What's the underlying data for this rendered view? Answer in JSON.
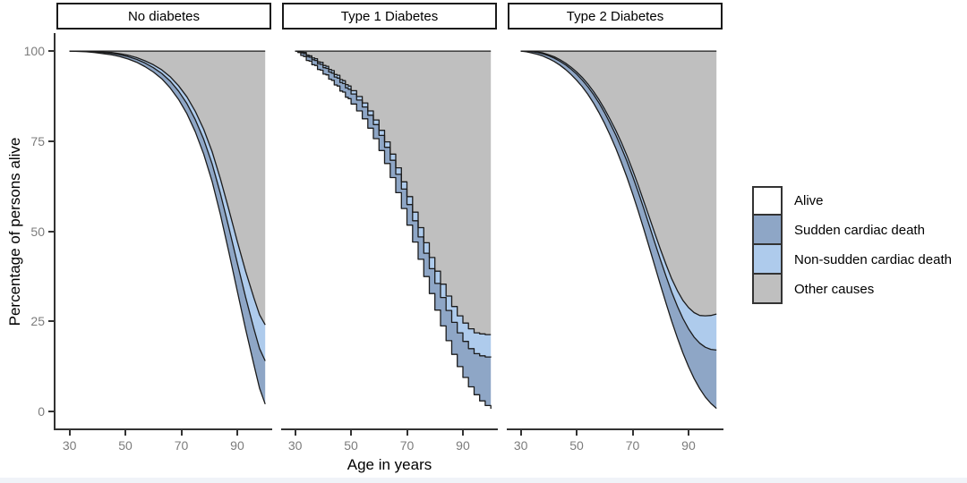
{
  "axes": {
    "x": {
      "title": "Age in years",
      "ticks": [
        30,
        50,
        70,
        90
      ],
      "range": [
        25,
        102.5
      ]
    },
    "y": {
      "title": "Percentage of persons alive",
      "ticks": [
        0,
        25,
        50,
        75,
        100
      ],
      "range": [
        -5,
        105
      ]
    }
  },
  "legend": {
    "items": [
      {
        "label": "Alive",
        "color": "#ffffff",
        "key": "alive"
      },
      {
        "label": "Sudden cardiac death",
        "color": "#8EA6C6",
        "key": "sudden-cardiac-death"
      },
      {
        "label": "Non-sudden cardiac death",
        "color": "#AECBEC",
        "key": "non-sudden-cardiac-death"
      },
      {
        "label": "Other causes",
        "color": "#BFBFBF",
        "key": "other-causes"
      }
    ]
  },
  "colors": {
    "alive": "#ffffff",
    "sudden_cardiac_death": "#8EA6C6",
    "non_sudden_cardiac_death": "#AECBEC",
    "other_causes": "#BFBFBF",
    "outline": "#1b1b1b",
    "axis": "#333333",
    "tick_label": "#7c7c7c",
    "strip_border": "#1a1a1a"
  },
  "chart_data": {
    "type": "area",
    "stacking": "cumulative percentage of cohort; white below curve = alive, bands above = cumulative deaths",
    "xlabel": "Age in years",
    "ylabel": "Percentage of persons alive",
    "xlim": [
      25,
      102.5
    ],
    "ylim": [
      -5,
      105
    ],
    "grid": false,
    "legend_position": "right",
    "panels": [
      {
        "label": "No diabetes",
        "step": false,
        "ages": [
          30,
          33,
          36,
          39,
          42,
          45,
          48,
          51,
          54,
          57,
          60,
          63,
          66,
          69,
          72,
          75,
          78,
          81,
          84,
          87,
          90,
          93,
          96,
          98,
          100
        ],
        "alive": [
          100,
          99.9,
          99.8,
          99.6,
          99.3,
          99.0,
          98.5,
          97.8,
          96.9,
          95.7,
          94.2,
          92.3,
          89.8,
          86.6,
          82.6,
          77.6,
          71.4,
          63.8,
          54.6,
          44.2,
          33.4,
          22.8,
          12.8,
          6.4,
          2.0
        ],
        "alive_plus_scd": [
          100,
          100,
          99.95,
          99.8,
          99.6,
          99.4,
          99.0,
          98.45,
          97.7,
          96.7,
          95.4,
          93.8,
          91.7,
          88.9,
          85.4,
          81.0,
          75.5,
          68.7,
          60.4,
          51.0,
          41.2,
          31.7,
          22.8,
          17.4,
          14.0
        ],
        "alive_plus_nscd": [
          100,
          100,
          100,
          99.9,
          99.75,
          99.6,
          99.3,
          98.85,
          98.2,
          97.3,
          96.2,
          94.8,
          92.9,
          90.4,
          87.3,
          83.3,
          78.3,
          72.1,
          64.5,
          56.0,
          47.2,
          38.9,
          31.4,
          26.8,
          24.0
        ]
      },
      {
        "label": "Type 1 Diabetes",
        "step": true,
        "ages": [
          30,
          31,
          32,
          33,
          34,
          35,
          36,
          37,
          38,
          39,
          40,
          41,
          42,
          43,
          44,
          45,
          46,
          47,
          48,
          49,
          50,
          52,
          54,
          56,
          58,
          60,
          62,
          64,
          66,
          68,
          70,
          72,
          74,
          76,
          78,
          80,
          82,
          84,
          86,
          88,
          90,
          92,
          94,
          96,
          98,
          100
        ],
        "alive": [
          100,
          99.6,
          98.8,
          98.5,
          97.4,
          97.2,
          96.2,
          96.0,
          94.9,
          94.7,
          93.6,
          93.4,
          92.2,
          91.9,
          90.6,
          90.3,
          88.9,
          88.6,
          87.2,
          86.8,
          85.3,
          83.4,
          81.2,
          78.6,
          75.7,
          72.4,
          68.8,
          64.9,
          60.7,
          56.3,
          51.7,
          47.0,
          42.2,
          37.4,
          32.7,
          28.1,
          23.7,
          19.6,
          15.8,
          12.4,
          9.4,
          6.8,
          4.6,
          2.9,
          1.6,
          0.7
        ],
        "alive_plus_scd": [
          100,
          99.9,
          99.5,
          99.3,
          98.5,
          98.3,
          97.6,
          97.4,
          96.5,
          96.3,
          95.4,
          95.2,
          94.2,
          93.9,
          92.8,
          92.5,
          91.3,
          91.0,
          89.8,
          89.4,
          88.1,
          86.4,
          84.5,
          82.2,
          79.6,
          76.6,
          73.3,
          69.7,
          65.8,
          61.7,
          57.4,
          52.9,
          48.4,
          43.9,
          39.6,
          35.5,
          31.6,
          28.0,
          24.7,
          21.8,
          19.4,
          17.4,
          16.0,
          15.4,
          15.1,
          15.0
        ],
        "alive_plus_nscd": [
          100,
          100,
          99.7,
          99.6,
          98.9,
          98.7,
          98.1,
          97.9,
          97.0,
          96.9,
          96.0,
          95.8,
          94.9,
          94.6,
          93.5,
          93.3,
          92.1,
          91.8,
          90.7,
          90.3,
          89.0,
          87.4,
          85.6,
          83.4,
          80.9,
          78.0,
          74.8,
          71.4,
          67.6,
          63.7,
          59.6,
          55.3,
          51.0,
          46.8,
          42.7,
          38.9,
          35.3,
          32.0,
          29.1,
          26.5,
          24.5,
          22.9,
          21.8,
          21.5,
          21.3,
          21.3
        ]
      },
      {
        "label": "Type 2 Diabetes",
        "step": false,
        "ages": [
          30,
          32,
          34,
          36,
          38,
          40,
          42,
          44,
          46,
          48,
          50,
          52,
          54,
          56,
          58,
          60,
          62,
          64,
          66,
          68,
          70,
          72,
          74,
          76,
          78,
          80,
          82,
          84,
          86,
          88,
          90,
          92,
          94,
          96,
          98,
          100
        ],
        "alive": [
          100,
          99.8,
          99.5,
          99.1,
          98.6,
          97.9,
          97.1,
          96.1,
          94.9,
          93.5,
          91.9,
          90.1,
          88.0,
          85.6,
          82.9,
          79.9,
          76.6,
          73.0,
          69.1,
          64.9,
          60.4,
          55.6,
          50.6,
          45.4,
          40.2,
          35.0,
          29.9,
          25.0,
          20.4,
          16.2,
          12.4,
          9.1,
          6.3,
          4.0,
          2.2,
          0.8
        ],
        "alive_plus_scd": [
          100,
          100,
          99.85,
          99.6,
          99.25,
          98.7,
          98.05,
          97.2,
          96.2,
          95.0,
          93.6,
          92.0,
          90.1,
          88.0,
          85.6,
          82.9,
          79.9,
          76.7,
          73.2,
          69.4,
          65.3,
          60.9,
          56.3,
          51.5,
          46.7,
          42.0,
          37.4,
          33.1,
          29.2,
          25.8,
          22.9,
          20.6,
          18.9,
          17.8,
          17.2,
          17.0
        ],
        "alive_plus_nscd": [
          100,
          100,
          99.97,
          99.78,
          99.49,
          99.0,
          98.41,
          97.62,
          96.68,
          95.54,
          94.2,
          92.68,
          90.86,
          88.84,
          86.52,
          83.9,
          81.04,
          77.98,
          74.62,
          70.96,
          67.0,
          62.75,
          58.3,
          53.8,
          49.3,
          44.9,
          40.7,
          36.8,
          33.5,
          30.8,
          28.8,
          27.4,
          26.6,
          26.5,
          26.6,
          27.0
        ]
      }
    ]
  }
}
